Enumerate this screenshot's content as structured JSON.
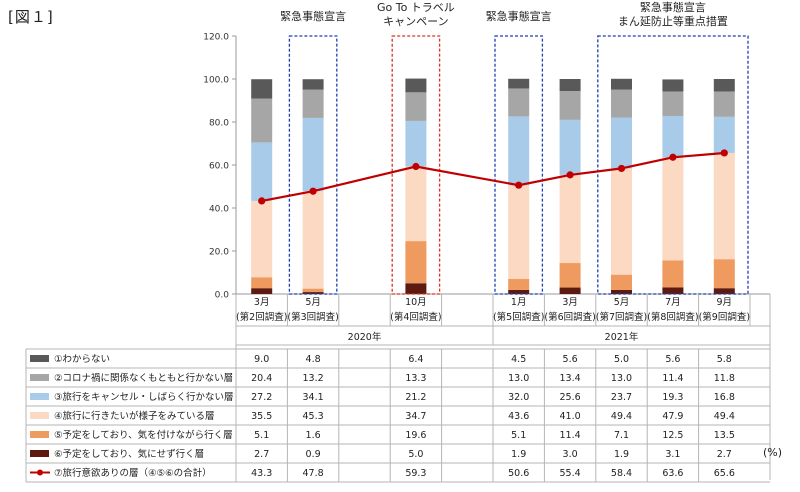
{
  "figure_label": "[図１]",
  "unit": "(%)",
  "chart_data": {
    "type": "bar",
    "stacked": true,
    "ylim": [
      0,
      120
    ],
    "yticks": [
      "0.0",
      "20.0",
      "40.0",
      "60.0",
      "80.0",
      "100.0",
      "120.0"
    ],
    "grid": false,
    "legend": "table-left",
    "columns": [
      {
        "month": "3月",
        "survey": "(第2回調査)"
      },
      {
        "month": "5月",
        "survey": "(第3回調査)"
      },
      {
        "month": "",
        "survey": ""
      },
      {
        "month": "10月",
        "survey": "(第4回調査)"
      },
      {
        "month": "",
        "survey": ""
      },
      {
        "month": "1月",
        "survey": "(第5回調査)"
      },
      {
        "month": "3月",
        "survey": "(第6回調査)"
      },
      {
        "month": "5月",
        "survey": "(第7回調査)"
      },
      {
        "month": "7月",
        "survey": "(第8回調査)"
      },
      {
        "month": "9月",
        "survey": "(第9回調査)"
      }
    ],
    "years": [
      {
        "label": "2020年",
        "from": 0,
        "to": 4
      },
      {
        "label": "2021年",
        "from": 5,
        "to": 9
      }
    ],
    "stack_series": [
      {
        "name": "⑥予定をしており、気にせず行く層",
        "color": "#5c1a10",
        "values": [
          2.7,
          0.9,
          null,
          5.0,
          null,
          1.9,
          3.0,
          1.9,
          3.1,
          2.7
        ],
        "labels": [
          "2.7",
          "0.9",
          "",
          "5.0",
          "",
          "1.9",
          "3.0",
          "1.9",
          "3.1",
          "2.7"
        ]
      },
      {
        "name": "⑤予定をしており、気を付けながら行く層",
        "color": "#ef9a5e",
        "values": [
          5.1,
          1.6,
          null,
          19.6,
          null,
          5.1,
          11.4,
          7.1,
          12.5,
          13.5
        ],
        "labels": [
          "5.1",
          "1.6",
          "",
          "19.6",
          "",
          "5.1",
          "11.4",
          "7.1",
          "12.5",
          "13.5"
        ]
      },
      {
        "name": "④旅行に行きたいが様子をみている層",
        "color": "#fbd9c3",
        "values": [
          35.5,
          45.3,
          null,
          34.7,
          null,
          43.6,
          41.0,
          49.4,
          47.9,
          49.4
        ],
        "labels": [
          "35.5",
          "45.3",
          "",
          "34.7",
          "",
          "43.6",
          "41.0",
          "49.4",
          "47.9",
          "49.4"
        ]
      },
      {
        "name": "③旅行をキャンセル・しばらく行かない層",
        "color": "#a9cbea",
        "values": [
          27.2,
          34.1,
          null,
          21.2,
          null,
          32.0,
          25.6,
          23.7,
          19.3,
          16.8
        ],
        "labels": [
          "27.2",
          "34.1",
          "",
          "21.2",
          "",
          "32.0",
          "25.6",
          "23.7",
          "19.3",
          "16.8"
        ]
      },
      {
        "name": "②コロナ禍に関係なくもともと行かない層",
        "color": "#a6a6a6",
        "values": [
          20.4,
          13.2,
          null,
          13.3,
          null,
          13.0,
          13.4,
          13.0,
          11.4,
          11.8
        ],
        "labels": [
          "20.4",
          "13.2",
          "",
          "13.3",
          "",
          "13.0",
          "13.4",
          "13.0",
          "11.4",
          "11.8"
        ]
      },
      {
        "name": "①わからない",
        "color": "#595959",
        "values": [
          9.0,
          4.8,
          null,
          6.4,
          null,
          4.5,
          5.6,
          5.0,
          5.6,
          5.8
        ],
        "labels": [
          "9.0",
          "4.8",
          "",
          "6.4",
          "",
          "4.5",
          "5.6",
          "5.0",
          "5.6",
          "5.8"
        ]
      }
    ],
    "line_series": {
      "name": "⑦旅行意欲ありの層（④⑤⑥の合計）",
      "color": "#c00000",
      "values": [
        43.3,
        47.8,
        null,
        59.3,
        null,
        50.6,
        55.4,
        58.4,
        63.6,
        65.6
      ],
      "labels": [
        "43.3",
        "47.8",
        "",
        "59.3",
        "",
        "50.6",
        "55.4",
        "58.4",
        "63.6",
        "65.6"
      ]
    },
    "table_order": [
      5,
      4,
      3,
      2,
      1,
      0
    ],
    "annotations": [
      {
        "lines": [
          "緊急事態宣言"
        ],
        "from": 1,
        "to": 1,
        "color": "#1f3fb5"
      },
      {
        "lines": [
          "Go To トラベル",
          "キャンペーン"
        ],
        "from": 3,
        "to": 3,
        "color": "#e0301e"
      },
      {
        "lines": [
          "緊急事態宣言"
        ],
        "from": 5,
        "to": 5,
        "color": "#1f3fb5"
      },
      {
        "lines": [
          "緊急事態宣言",
          "まん延防止等重点措置"
        ],
        "from": 7,
        "to": 9,
        "color": "#1f3fb5"
      }
    ]
  }
}
